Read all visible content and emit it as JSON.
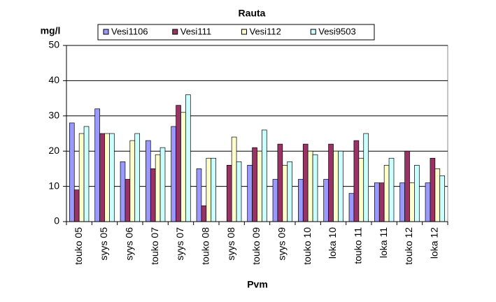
{
  "chart_data": {
    "type": "bar",
    "title": "Rauta",
    "y_label": "mg/l",
    "x_label": "Pvm",
    "categories": [
      "touko 05",
      "syys 05",
      "syys 06",
      "touko 07",
      "syys 07",
      "touko 08",
      "syys 08",
      "touko 09",
      "syys 09",
      "touko 10",
      "loka 10",
      "touko 11",
      "loka 11",
      "touko 12",
      "loka 12"
    ],
    "series": [
      {
        "name": "Vesi1106",
        "color": "#9999ff",
        "values": [
          28,
          32,
          17,
          23,
          27,
          15,
          null,
          16,
          12,
          12,
          12,
          8,
          11,
          11,
          11
        ]
      },
      {
        "name": "Vesi111",
        "color": "#993366",
        "values": [
          9,
          25,
          12,
          15,
          33,
          4.5,
          16,
          21,
          22,
          22,
          22,
          23,
          11,
          20,
          18
        ]
      },
      {
        "name": "Vesi112",
        "color": "#ffffcc",
        "values": [
          25,
          25,
          23,
          19,
          31,
          18,
          24,
          20,
          16,
          20,
          20,
          18,
          16,
          11,
          15
        ]
      },
      {
        "name": "Vesi9503",
        "color": "#ccffff",
        "values": [
          27,
          25,
          25,
          21,
          36,
          18,
          17,
          26,
          17,
          19,
          20,
          25,
          18,
          16,
          13
        ]
      }
    ],
    "ylim": [
      0,
      50
    ],
    "yticks": [
      0,
      10,
      20,
      30,
      40,
      50
    ],
    "grid": true
  }
}
